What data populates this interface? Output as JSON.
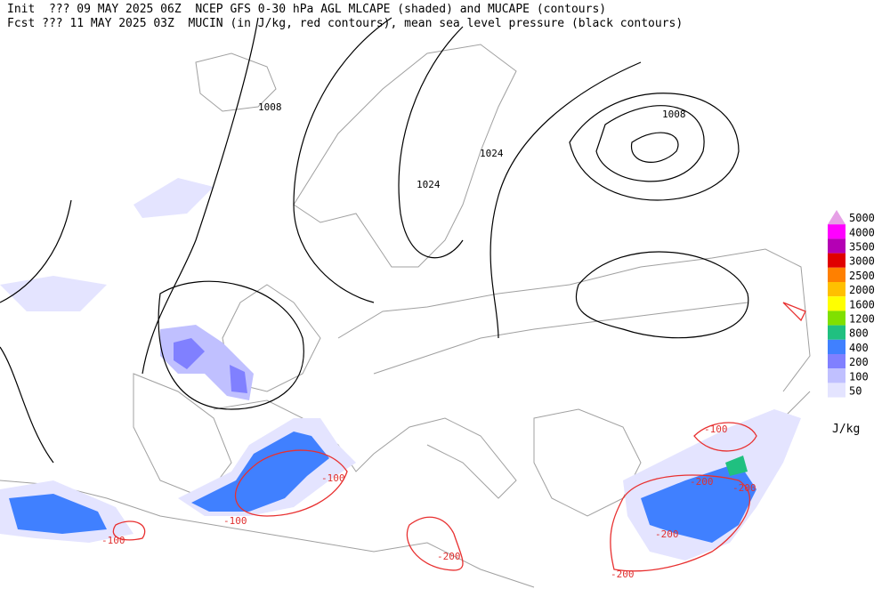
{
  "header": {
    "line1": "Init  ??? 09 MAY 2025 06Z  NCEP GFS 0-30 hPa AGL MLCAPE (shaded) and MUCAPE (contours)",
    "line2": "Fcst ??? 11 MAY 2025 03Z  MUCIN (in J/kg, red contours), mean sea level pressure (black contours)"
  },
  "pressure_labels": [
    "1008",
    "1024",
    "1024",
    "1008"
  ],
  "cin_labels": [
    "-100",
    "-100",
    "-100",
    "-200",
    "-100",
    "-200",
    "-200",
    "-200",
    "-200"
  ],
  "legend": {
    "unit": "J/kg",
    "levels": [
      {
        "label": "5000",
        "color": "#e6a0e6"
      },
      {
        "label": "4000",
        "color": "#ff00ff"
      },
      {
        "label": "3500",
        "color": "#b400b4"
      },
      {
        "label": "3000",
        "color": "#e00000"
      },
      {
        "label": "2500",
        "color": "#ff8000"
      },
      {
        "label": "2000",
        "color": "#ffc000"
      },
      {
        "label": "1600",
        "color": "#ffff00"
      },
      {
        "label": "1200",
        "color": "#80e000"
      },
      {
        "label": "800",
        "color": "#20c080"
      },
      {
        "label": "400",
        "color": "#4080ff"
      },
      {
        "label": "200",
        "color": "#8080ff"
      },
      {
        "label": "100",
        "color": "#c0c0ff"
      },
      {
        "label": "50",
        "color": "#e4e4ff"
      }
    ]
  }
}
